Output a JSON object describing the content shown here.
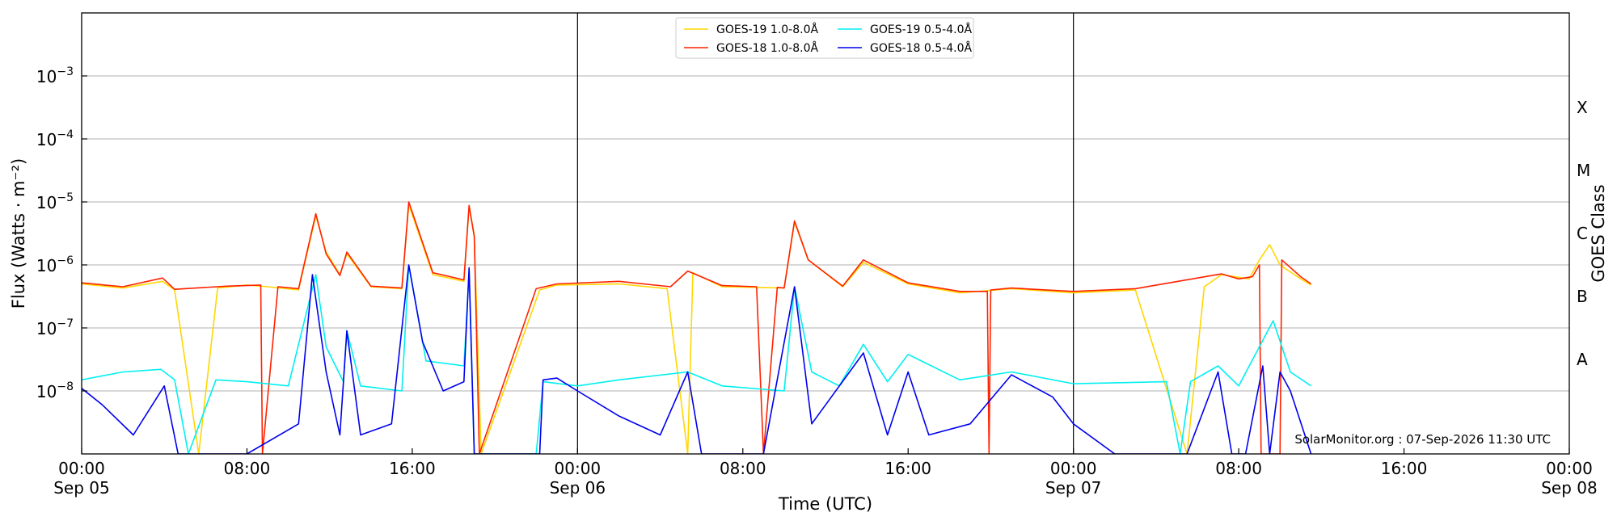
{
  "chart_data": {
    "type": "line",
    "title": "",
    "xlabel": "Time (UTC)",
    "ylabel": "Flux (Watts · m⁻²)",
    "y2label": "GOES Class",
    "credit": "SolarMonitor.org : 07-Sep-2026 11:30 UTC",
    "x_axis": {
      "type": "datetime",
      "range": [
        "2026-09-05 00:00",
        "2026-09-08 00:00"
      ],
      "day_dividers": [
        "2026-09-06 00:00",
        "2026-09-07 00:00"
      ],
      "ticks": [
        {
          "t": "2026-09-05 00:00",
          "line1": "00:00",
          "line2": "Sep 05"
        },
        {
          "t": "2026-09-05 08:00",
          "line1": "08:00",
          "line2": ""
        },
        {
          "t": "2026-09-05 16:00",
          "line1": "16:00",
          "line2": ""
        },
        {
          "t": "2026-09-06 00:00",
          "line1": "00:00",
          "line2": "Sep 06"
        },
        {
          "t": "2026-09-06 08:00",
          "line1": "08:00",
          "line2": ""
        },
        {
          "t": "2026-09-06 16:00",
          "line1": "16:00",
          "line2": ""
        },
        {
          "t": "2026-09-07 00:00",
          "line1": "00:00",
          "line2": "Sep 07"
        },
        {
          "t": "2026-09-07 08:00",
          "line1": "08:00",
          "line2": ""
        },
        {
          "t": "2026-09-07 16:00",
          "line1": "16:00",
          "line2": ""
        },
        {
          "t": "2026-09-08 00:00",
          "line1": "00:00",
          "line2": "Sep 08"
        }
      ]
    },
    "y_axis": {
      "scale": "log",
      "range": [
        1e-09,
        0.01
      ],
      "ticks": [
        {
          "value": 1e-08,
          "mant": "10",
          "exp": "−8"
        },
        {
          "value": 1e-07,
          "mant": "10",
          "exp": "−7"
        },
        {
          "value": 1e-06,
          "mant": "10",
          "exp": "−6"
        },
        {
          "value": 1e-05,
          "mant": "10",
          "exp": "−5"
        },
        {
          "value": 0.0001,
          "mant": "10",
          "exp": "−4"
        },
        {
          "value": 0.001,
          "mant": "10",
          "exp": "−3"
        }
      ],
      "grid": true
    },
    "goes_classes": [
      {
        "label": "A",
        "value": 3.16e-08
      },
      {
        "label": "B",
        "value": 3.16e-07
      },
      {
        "label": "C",
        "value": 3.16e-06
      },
      {
        "label": "M",
        "value": 3.16e-05
      },
      {
        "label": "X",
        "value": 0.000316
      }
    ],
    "legend": {
      "position": "top-center",
      "columns": [
        [
          "GOES-19 1.0-8.0Å",
          "GOES-18 1.0-8.0Å"
        ],
        [
          "GOES-19 0.5-4.0Å",
          "GOES-18 0.5-4.0Å"
        ]
      ]
    },
    "series": [
      {
        "name": "GOES-19 1.0-8.0Å",
        "color": "#ffd700",
        "points": [
          [
            "2026-09-05 00:00",
            5e-07
          ],
          [
            "2026-09-05 02:00",
            4.3e-07
          ],
          [
            "2026-09-05 03:55",
            5.5e-07
          ],
          [
            "2026-09-05 04:30",
            4e-07
          ],
          [
            "2026-09-05 05:40",
            1e-09
          ],
          [
            "2026-09-05 06:35",
            4.3e-07
          ],
          [
            "2026-09-05 08:00",
            4.8e-07
          ],
          [
            "2026-09-05 09:00",
            4.5e-07
          ],
          [
            "2026-09-05 10:30",
            4e-07
          ],
          [
            "2026-09-05 11:20",
            6e-06
          ],
          [
            "2026-09-05 11:50",
            1.6e-06
          ],
          [
            "2026-09-05 12:30",
            7e-07
          ],
          [
            "2026-09-05 12:50",
            1.5e-06
          ],
          [
            "2026-09-05 14:00",
            4.5e-07
          ],
          [
            "2026-09-05 15:30",
            4.2e-07
          ],
          [
            "2026-09-05 15:50",
            9e-06
          ],
          [
            "2026-09-05 17:00",
            7e-07
          ],
          [
            "2026-09-05 18:30",
            5.5e-07
          ],
          [
            "2026-09-05 18:45",
            8.5e-06
          ],
          [
            "2026-09-05 19:00",
            3e-06
          ],
          [
            "2026-09-05 19:20",
            1e-09
          ],
          [
            "2026-09-05 22:10",
            4e-07
          ],
          [
            "2026-09-05 23:00",
            4.8e-07
          ],
          [
            "2026-09-06 02:00",
            5e-07
          ],
          [
            "2026-09-06 04:20",
            4.2e-07
          ],
          [
            "2026-09-06 05:20",
            1e-09
          ],
          [
            "2026-09-06 05:35",
            7.5e-07
          ],
          [
            "2026-09-06 07:00",
            4.5e-07
          ],
          [
            "2026-09-06 10:00",
            4.3e-07
          ],
          [
            "2026-09-06 10:30",
            4.8e-06
          ],
          [
            "2026-09-06 11:10",
            1.2e-06
          ],
          [
            "2026-09-06 12:50",
            4.5e-07
          ],
          [
            "2026-09-06 13:50",
            1.1e-06
          ],
          [
            "2026-09-06 16:00",
            5e-07
          ],
          [
            "2026-09-06 18:30",
            3.6e-07
          ],
          [
            "2026-09-06 21:00",
            4.2e-07
          ],
          [
            "2026-09-07 00:00",
            3.6e-07
          ],
          [
            "2026-09-07 03:00",
            4e-07
          ],
          [
            "2026-09-07 05:30",
            1e-09
          ],
          [
            "2026-09-07 06:20",
            4.5e-07
          ],
          [
            "2026-09-07 07:10",
            7e-07
          ],
          [
            "2026-09-07 08:30",
            6e-07
          ],
          [
            "2026-09-07 09:00",
            1.2e-06
          ],
          [
            "2026-09-07 09:30",
            2.1e-06
          ],
          [
            "2026-09-07 10:00",
            1e-06
          ],
          [
            "2026-09-07 11:00",
            6e-07
          ],
          [
            "2026-09-07 11:30",
            4.8e-07
          ]
        ]
      },
      {
        "name": "GOES-18 1.0-8.0Å",
        "color": "#ff2200",
        "points": [
          [
            "2026-09-05 00:00",
            5.2e-07
          ],
          [
            "2026-09-05 02:00",
            4.5e-07
          ],
          [
            "2026-09-05 03:55",
            6.2e-07
          ],
          [
            "2026-09-05 04:30",
            4.1e-07
          ],
          [
            "2026-09-05 07:00",
            4.6e-07
          ],
          [
            "2026-09-05 08:40",
            4.8e-07
          ],
          [
            "2026-09-05 08:45",
            1e-09
          ],
          [
            "2026-09-05 09:30",
            4.5e-07
          ],
          [
            "2026-09-05 10:30",
            4.2e-07
          ],
          [
            "2026-09-05 11:20",
            6.5e-06
          ],
          [
            "2026-09-05 11:50",
            1.5e-06
          ],
          [
            "2026-09-05 12:30",
            6.8e-07
          ],
          [
            "2026-09-05 12:50",
            1.6e-06
          ],
          [
            "2026-09-05 14:00",
            4.6e-07
          ],
          [
            "2026-09-05 15:30",
            4.3e-07
          ],
          [
            "2026-09-05 15:50",
            1e-05
          ],
          [
            "2026-09-05 17:00",
            7.5e-07
          ],
          [
            "2026-09-05 18:30",
            5.8e-07
          ],
          [
            "2026-09-05 18:45",
            8.8e-06
          ],
          [
            "2026-09-05 19:00",
            2.8e-06
          ],
          [
            "2026-09-05 19:15",
            1e-09
          ],
          [
            "2026-09-05 22:00",
            4.2e-07
          ],
          [
            "2026-09-05 23:00",
            5e-07
          ],
          [
            "2026-09-06 02:00",
            5.5e-07
          ],
          [
            "2026-09-06 04:30",
            4.5e-07
          ],
          [
            "2026-09-06 05:20",
            8e-07
          ],
          [
            "2026-09-06 07:00",
            4.7e-07
          ],
          [
            "2026-09-06 08:40",
            4.5e-07
          ],
          [
            "2026-09-06 09:00",
            1e-09
          ],
          [
            "2026-09-06 09:40",
            4.4e-07
          ],
          [
            "2026-09-06 10:00",
            4.3e-07
          ],
          [
            "2026-09-06 10:30",
            5e-06
          ],
          [
            "2026-09-06 11:10",
            1.2e-06
          ],
          [
            "2026-09-06 12:50",
            4.6e-07
          ],
          [
            "2026-09-06 13:50",
            1.2e-06
          ],
          [
            "2026-09-06 16:00",
            5.2e-07
          ],
          [
            "2026-09-06 18:30",
            3.8e-07
          ],
          [
            "2026-09-06 19:50",
            3.8e-07
          ],
          [
            "2026-09-06 19:55",
            1e-09
          ],
          [
            "2026-09-06 20:00",
            4e-07
          ],
          [
            "2026-09-06 21:00",
            4.3e-07
          ],
          [
            "2026-09-07 00:00",
            3.8e-07
          ],
          [
            "2026-09-07 03:00",
            4.2e-07
          ],
          [
            "2026-09-07 07:10",
            7.2e-07
          ],
          [
            "2026-09-07 08:00",
            6e-07
          ],
          [
            "2026-09-07 08:40",
            6.5e-07
          ],
          [
            "2026-09-07 09:00",
            1e-06
          ],
          [
            "2026-09-07 09:05",
            1e-09
          ],
          [
            "2026-09-07 10:00",
            1e-09
          ],
          [
            "2026-09-07 10:05",
            1.2e-06
          ],
          [
            "2026-09-07 11:00",
            6.5e-07
          ],
          [
            "2026-09-07 11:30",
            5e-07
          ]
        ]
      },
      {
        "name": "GOES-19 0.5-4.0Å",
        "color": "#00f0f0",
        "points": [
          [
            "2026-09-05 00:00",
            1.5e-08
          ],
          [
            "2026-09-05 02:00",
            2e-08
          ],
          [
            "2026-09-05 03:50",
            2.2e-08
          ],
          [
            "2026-09-05 04:30",
            1.5e-08
          ],
          [
            "2026-09-05 05:10",
            1e-09
          ],
          [
            "2026-09-05 06:30",
            1.5e-08
          ],
          [
            "2026-09-05 08:00",
            1.4e-08
          ],
          [
            "2026-09-05 10:00",
            1.2e-08
          ],
          [
            "2026-09-05 11:20",
            7e-07
          ],
          [
            "2026-09-05 11:50",
            5e-08
          ],
          [
            "2026-09-05 12:40",
            1.4e-08
          ],
          [
            "2026-09-05 12:50",
            9e-08
          ],
          [
            "2026-09-05 13:30",
            1.2e-08
          ],
          [
            "2026-09-05 15:30",
            1e-08
          ],
          [
            "2026-09-05 15:50",
            1e-06
          ],
          [
            "2026-09-05 16:40",
            3e-08
          ],
          [
            "2026-09-05 18:30",
            2.5e-08
          ],
          [
            "2026-09-05 18:45",
            8e-07
          ],
          [
            "2026-09-05 19:00",
            1e-09
          ],
          [
            "2026-09-05 22:00",
            1e-09
          ],
          [
            "2026-09-05 22:20",
            1.4e-08
          ],
          [
            "2026-09-06 00:00",
            1.2e-08
          ],
          [
            "2026-09-06 02:00",
            1.5e-08
          ],
          [
            "2026-09-06 05:20",
            2e-08
          ],
          [
            "2026-09-06 07:00",
            1.2e-08
          ],
          [
            "2026-09-06 10:00",
            1e-08
          ],
          [
            "2026-09-06 10:30",
            4.5e-07
          ],
          [
            "2026-09-06 11:20",
            2e-08
          ],
          [
            "2026-09-06 12:40",
            1.2e-08
          ],
          [
            "2026-09-06 13:50",
            5.5e-08
          ],
          [
            "2026-09-06 15:00",
            1.4e-08
          ],
          [
            "2026-09-06 16:00",
            3.8e-08
          ],
          [
            "2026-09-06 18:30",
            1.5e-08
          ],
          [
            "2026-09-06 21:00",
            2e-08
          ],
          [
            "2026-09-07 00:00",
            1.3e-08
          ],
          [
            "2026-09-07 04:30",
            1.4e-08
          ],
          [
            "2026-09-07 05:10",
            1e-09
          ],
          [
            "2026-09-07 05:40",
            1.4e-08
          ],
          [
            "2026-09-07 07:00",
            2.5e-08
          ],
          [
            "2026-09-07 08:00",
            1.2e-08
          ],
          [
            "2026-09-07 09:40",
            1.3e-07
          ],
          [
            "2026-09-07 10:30",
            2e-08
          ],
          [
            "2026-09-07 11:30",
            1.2e-08
          ]
        ]
      },
      {
        "name": "GOES-18 0.5-4.0Å",
        "color": "#0000ee",
        "points": [
          [
            "2026-09-05 00:00",
            1.1e-08
          ],
          [
            "2026-09-05 01:00",
            6e-09
          ],
          [
            "2026-09-05 02:30",
            2e-09
          ],
          [
            "2026-09-05 04:00",
            1.2e-08
          ],
          [
            "2026-09-05 04:40",
            1e-09
          ],
          [
            "2026-09-05 08:00",
            1e-09
          ],
          [
            "2026-09-05 10:30",
            3e-09
          ],
          [
            "2026-09-05 11:10",
            7e-07
          ],
          [
            "2026-09-05 11:50",
            2e-08
          ],
          [
            "2026-09-05 12:30",
            2e-09
          ],
          [
            "2026-09-05 12:50",
            9e-08
          ],
          [
            "2026-09-05 13:30",
            2e-09
          ],
          [
            "2026-09-05 15:00",
            3e-09
          ],
          [
            "2026-09-05 15:50",
            1e-06
          ],
          [
            "2026-09-05 16:30",
            6e-08
          ],
          [
            "2026-09-05 17:30",
            1e-08
          ],
          [
            "2026-09-05 18:30",
            1.4e-08
          ],
          [
            "2026-09-05 18:45",
            9e-07
          ],
          [
            "2026-09-05 19:00",
            1e-09
          ],
          [
            "2026-09-05 22:10",
            1e-09
          ],
          [
            "2026-09-05 22:20",
            1.5e-08
          ],
          [
            "2026-09-05 23:00",
            1.6e-08
          ],
          [
            "2026-09-06 00:00",
            1e-08
          ],
          [
            "2026-09-06 02:00",
            4e-09
          ],
          [
            "2026-09-06 04:00",
            2e-09
          ],
          [
            "2026-09-06 05:20",
            2e-08
          ],
          [
            "2026-09-06 06:00",
            1e-09
          ],
          [
            "2026-09-06 09:00",
            1e-09
          ],
          [
            "2026-09-06 10:30",
            4.5e-07
          ],
          [
            "2026-09-06 11:20",
            3e-09
          ],
          [
            "2026-09-06 13:50",
            4e-08
          ],
          [
            "2026-09-06 15:00",
            2e-09
          ],
          [
            "2026-09-06 16:00",
            2e-08
          ],
          [
            "2026-09-06 17:00",
            2e-09
          ],
          [
            "2026-09-06 19:00",
            3e-09
          ],
          [
            "2026-09-06 21:00",
            1.8e-08
          ],
          [
            "2026-09-06 23:00",
            8e-09
          ],
          [
            "2026-09-07 00:00",
            3e-09
          ],
          [
            "2026-09-07 02:00",
            1e-09
          ],
          [
            "2026-09-07 05:30",
            1e-09
          ],
          [
            "2026-09-07 07:00",
            2e-08
          ],
          [
            "2026-09-07 07:40",
            1e-09
          ],
          [
            "2026-09-07 08:20",
            1e-09
          ],
          [
            "2026-09-07 09:10",
            2.5e-08
          ],
          [
            "2026-09-07 09:30",
            1e-09
          ],
          [
            "2026-09-07 10:00",
            2e-08
          ],
          [
            "2026-09-07 10:30",
            1e-08
          ],
          [
            "2026-09-07 11:30",
            1e-09
          ]
        ]
      }
    ]
  }
}
